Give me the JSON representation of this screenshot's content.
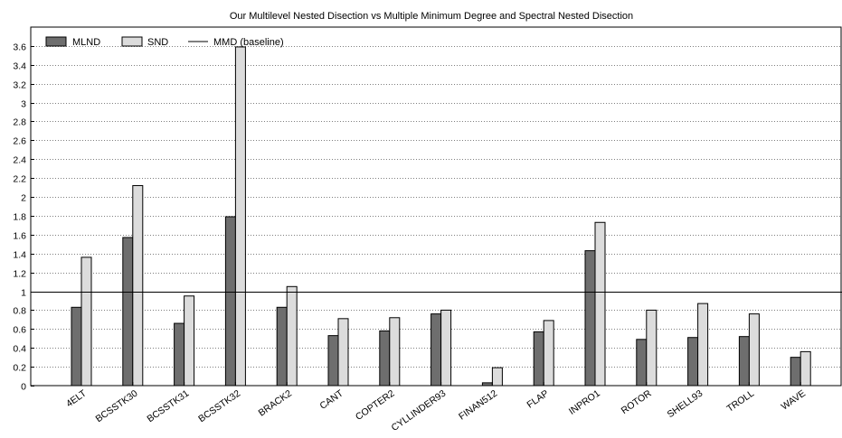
{
  "chart_data": {
    "type": "bar",
    "title": "Our Multilevel Nested Disection vs Multiple Minimum Degree and Spectral Nested Disection",
    "xlabel": "",
    "ylabel": "",
    "ylim": [
      0,
      3.8
    ],
    "yticks": [
      0,
      0.2,
      0.4,
      0.6,
      0.8,
      1,
      1.2,
      1.4,
      1.6,
      1.8,
      2,
      2.2,
      2.4,
      2.6,
      2.8,
      3,
      3.2,
      3.4,
      3.6
    ],
    "grid": true,
    "legend_position": "top-left",
    "categories": [
      "4ELT",
      "BCSSTK30",
      "BCSSTK31",
      "BCSSTK32",
      "BRACK2",
      "CANT",
      "COPTER2",
      "CYLLINDER93",
      "FINAN512",
      "FLAP",
      "INPRO1",
      "ROTOR",
      "SHELL93",
      "TROLL",
      "WAVE"
    ],
    "series": [
      {
        "name": "MLND",
        "color": "#6e6e6e",
        "values": [
          0.83,
          1.57,
          0.66,
          1.79,
          0.83,
          0.53,
          0.58,
          0.76,
          0.03,
          0.57,
          1.43,
          0.49,
          0.51,
          0.52,
          0.3
        ]
      },
      {
        "name": "SND",
        "color": "#dcdcdc",
        "values": [
          1.36,
          2.12,
          0.95,
          3.59,
          1.05,
          0.71,
          0.72,
          0.8,
          0.19,
          0.69,
          1.73,
          0.8,
          0.87,
          0.76,
          0.36
        ]
      }
    ],
    "baseline": {
      "name": "MMD (baseline)",
      "value": 1
    }
  }
}
